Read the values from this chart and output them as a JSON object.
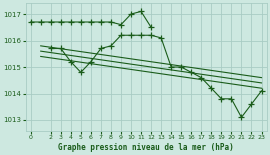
{
  "background_color": "#cde8e0",
  "grid_color": "#a8ccc4",
  "line_color": "#1a5c1a",
  "title": "Graphe pression niveau de la mer (hPa)",
  "ylim": [
    1012.6,
    1017.4
  ],
  "yticks": [
    1013,
    1014,
    1015,
    1016,
    1017
  ],
  "xlim": [
    -0.5,
    23.5
  ],
  "xticks": [
    0,
    2,
    3,
    4,
    5,
    6,
    7,
    8,
    9,
    10,
    11,
    12,
    13,
    14,
    15,
    16,
    17,
    18,
    19,
    20,
    21,
    22,
    23
  ],
  "series": [
    {
      "x": [
        0,
        1,
        2,
        3,
        4,
        5,
        6,
        7,
        8,
        9,
        10,
        11,
        12,
        13,
        14,
        15,
        16,
        17,
        18,
        19,
        20,
        21,
        22,
        23
      ],
      "y": [
        1016.7,
        1016.7,
        1016.7,
        1016.7,
        1016.7,
        1016.7,
        1016.7,
        1016.7,
        1016.7,
        1016.6,
        1017.0,
        1017.1,
        1016.5,
        null,
        null,
        null,
        null,
        null,
        null,
        null,
        null,
        null,
        null,
        null
      ],
      "marker": true
    },
    {
      "x": [
        2,
        3,
        4,
        5,
        6,
        7,
        8,
        9,
        10,
        11,
        12,
        13,
        14,
        15,
        16,
        17,
        18,
        19,
        20,
        21,
        22,
        23
      ],
      "y": [
        1015.7,
        1015.7,
        1015.2,
        1014.8,
        1015.2,
        1015.7,
        1015.8,
        1016.2,
        1016.2,
        1016.2,
        1016.2,
        1016.1,
        1015.0,
        1015.0,
        1014.8,
        1014.6,
        1014.2,
        1013.8,
        1013.8,
        1013.1,
        1013.6,
        1014.1
      ],
      "marker": true
    },
    {
      "x": [
        1,
        23
      ],
      "y": [
        1015.8,
        1014.6
      ],
      "marker": false
    },
    {
      "x": [
        1,
        23
      ],
      "y": [
        1015.6,
        1014.4
      ],
      "marker": false
    },
    {
      "x": [
        1,
        23
      ],
      "y": [
        1015.4,
        1014.2
      ],
      "marker": false
    }
  ]
}
